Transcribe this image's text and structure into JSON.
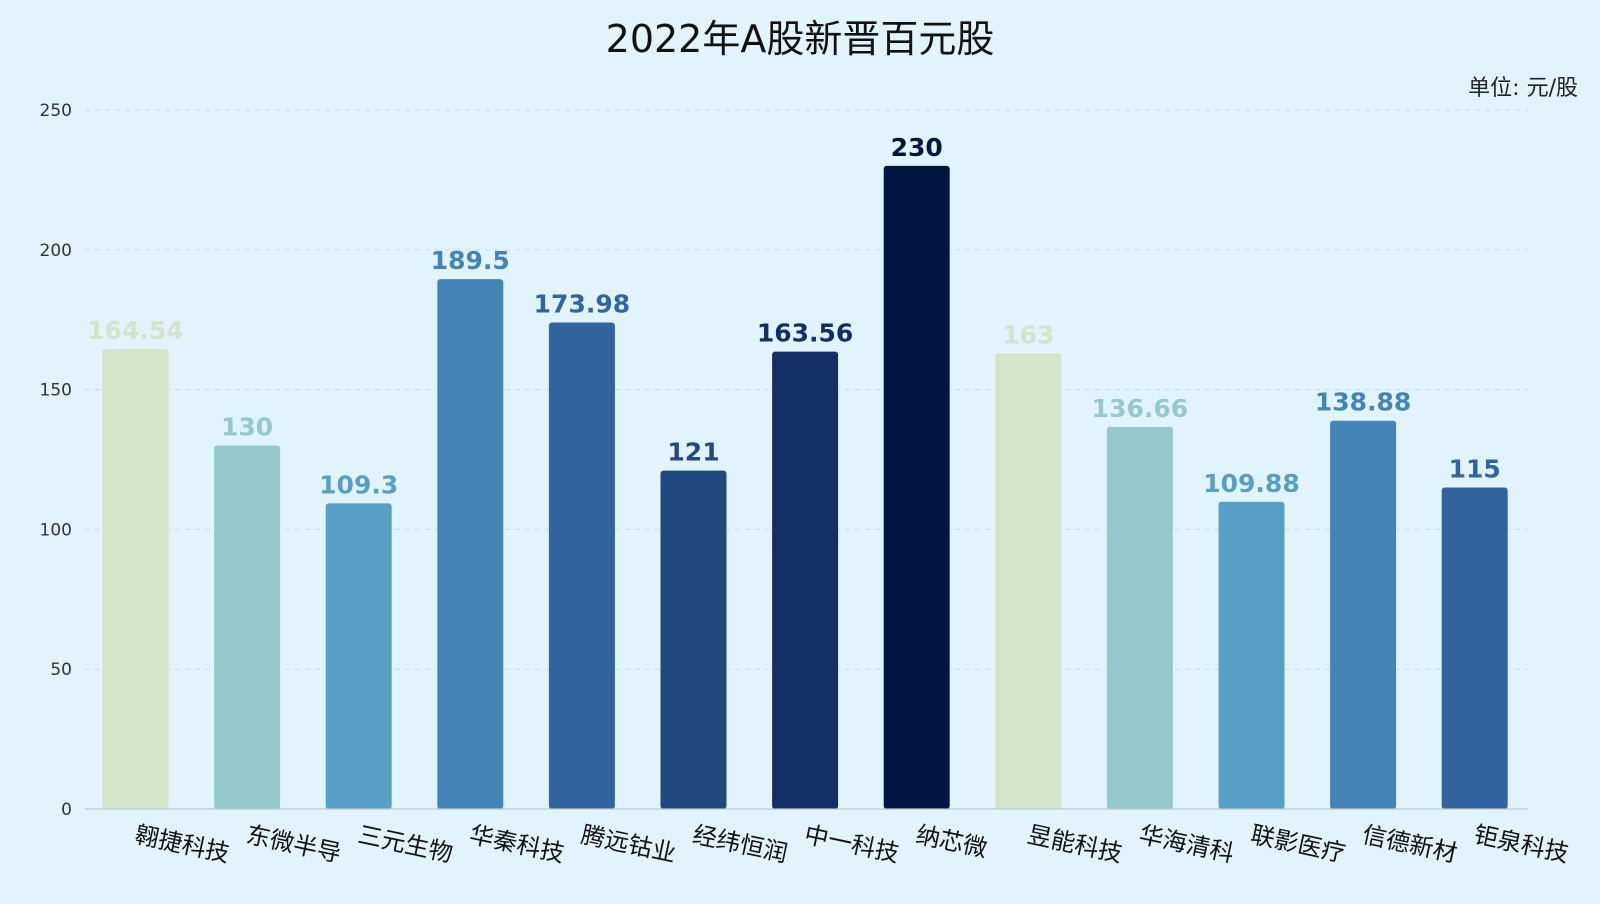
{
  "chart_data": {
    "type": "bar",
    "title": "2022年A股新晋百元股",
    "unit_label": "单位: 元/股",
    "categories": [
      "翱捷科技",
      "东微半导",
      "三元生物",
      "华秦科技",
      "腾远钴业",
      "经纬恒润",
      "中一科技",
      "纳芯微",
      "昱能科技",
      "华海清科",
      "联影医疗",
      "信德新材",
      "钜泉科技"
    ],
    "values": [
      164.54,
      130,
      109.3,
      189.5,
      173.98,
      121,
      163.56,
      230,
      163,
      136.66,
      109.88,
      138.88,
      115
    ],
    "value_labels": [
      "164.54",
      "130",
      "109.3",
      "189.5",
      "173.98",
      "121",
      "163.56",
      "230",
      "163",
      "136.66",
      "109.88",
      "138.88",
      "115"
    ],
    "colors": [
      "#d2e5c8",
      "#96c9cd",
      "#589fc6",
      "#4584b7",
      "#3265a0",
      "#22497e",
      "#132f63",
      "#011543",
      "#d2e5c8",
      "#96c9cd",
      "#589fc6",
      "#4584b7",
      "#3265a0"
    ],
    "ylim": [
      0,
      250
    ],
    "yticks": [
      "0",
      "50",
      "100",
      "150",
      "200",
      "250"
    ],
    "grid": true,
    "xlabel": "",
    "ylabel": ""
  }
}
